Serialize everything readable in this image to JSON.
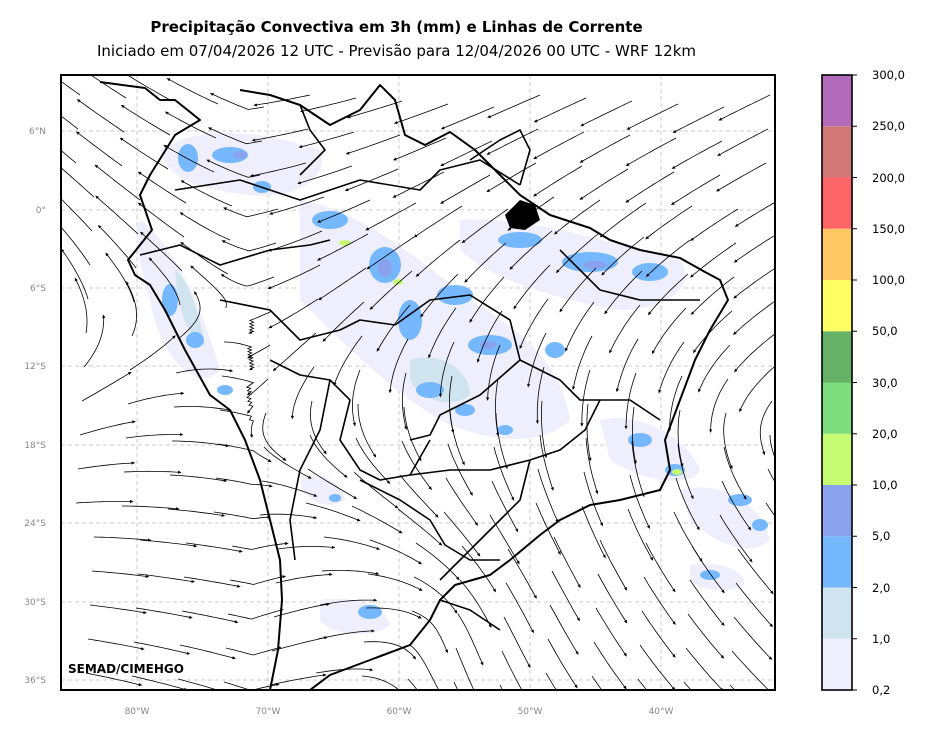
{
  "header": {
    "title": "Precipitação Convectiva em 3h (mm) e Linhas de Corrente",
    "subtitle": "Iniciado em 07/04/2026 12 UTC - Previsão para 12/04/2026 00 UTC - WRF 12km"
  },
  "map": {
    "lat_ticks": [
      "6°N",
      "0°",
      "6°S",
      "12°S",
      "18°S",
      "24°S",
      "30°S",
      "36°S"
    ],
    "lon_ticks": [
      "80°W",
      "70°W",
      "60°W",
      "50°W",
      "40°W"
    ],
    "credit": "SEMAD/CIMEHGO"
  },
  "colorbar": {
    "labels": [
      "0,2",
      "1,0",
      "2,0",
      "5,0",
      "10,0",
      "20,0",
      "30,0",
      "50,0",
      "100,0",
      "150,0",
      "200,0",
      "250,0",
      "300,0"
    ],
    "colors": [
      "#eeeefc",
      "#cfe4ee",
      "#75b8fe",
      "#8aa2ee",
      "#c8fb74",
      "#7ddc7e",
      "#66b166",
      "#fefe64",
      "#fdc863",
      "#fd6666",
      "#d27878",
      "#b26bba"
    ]
  }
}
